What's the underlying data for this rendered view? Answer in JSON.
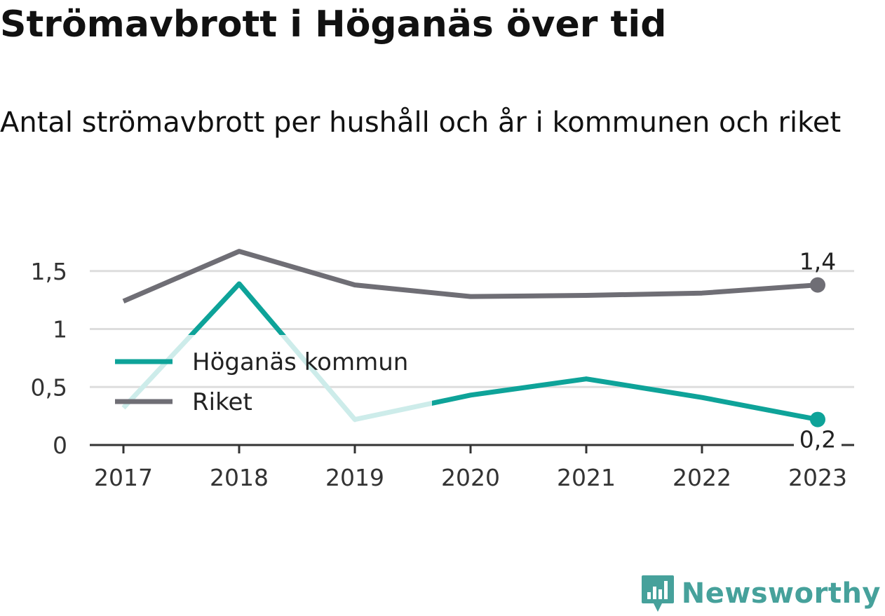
{
  "title": "Strömavbrott i Höganäs över tid",
  "subtitle": "Antal strömavbrott per hushåll och år i kommunen och riket",
  "brand": {
    "name": "Newsworthy",
    "icon": "newsworthy-logo-icon"
  },
  "colors": {
    "hoganas": "#0ea399",
    "hoganas_faded": "#cdecea",
    "riket": "#6f6e75",
    "grid": "#dddddd",
    "axis": "#333333"
  },
  "chart_data": {
    "type": "line",
    "title": "Strömavbrott i Höganäs över tid",
    "subtitle": "Antal strömavbrott per hushåll och år i kommunen och riket",
    "xlabel": "",
    "ylabel": "",
    "categories": [
      "2017",
      "2018",
      "2019",
      "2020",
      "2021",
      "2022",
      "2023"
    ],
    "ylim": [
      0,
      1.75
    ],
    "yticks": [
      0,
      0.5,
      1,
      1.5
    ],
    "ytick_labels": [
      "0",
      "0,5",
      "1",
      "1,5"
    ],
    "grid": true,
    "legend_position": "center-left",
    "series": [
      {
        "name": "Höganäs kommun",
        "values": [
          0.32,
          1.39,
          0.22,
          0.43,
          0.57,
          0.41,
          0.22
        ],
        "end_label": "0,2"
      },
      {
        "name": "Riket",
        "values": [
          1.24,
          1.67,
          1.38,
          1.28,
          1.29,
          1.31,
          1.38
        ],
        "end_label": "1,4"
      }
    ]
  }
}
